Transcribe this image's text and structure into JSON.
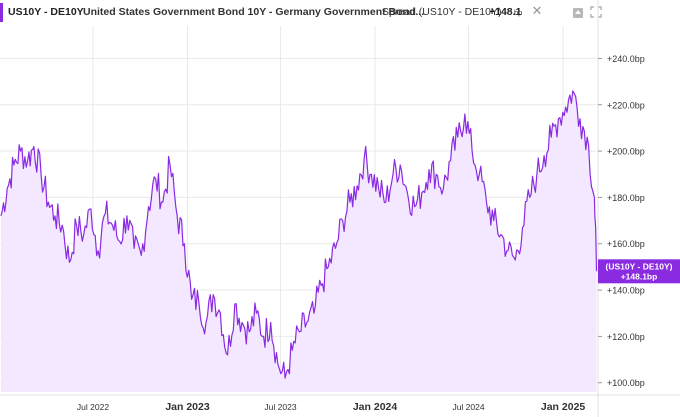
{
  "header": {
    "symbol": "US10Y - DE10Y",
    "description": "United States Government Bond 10Y - Germany Government Bond...",
    "spread_label": "Spread (US10Y - DE10Y)",
    "spread_value": "+148.1",
    "spread_unit": "bp",
    "close_glyph": "✕",
    "icons": [
      "upload-icon",
      "expand-icon"
    ]
  },
  "colors": {
    "accent": "#8a2be2",
    "line": "#8a2be2",
    "fill": "#f3e8ff",
    "grid": "#e9e9e9",
    "label_bg": "#8a2be2"
  },
  "price_label": {
    "line1": "(US10Y - DE10Y)",
    "line2": "+148.1bp"
  },
  "chart_data": {
    "type": "area",
    "title": "",
    "xlabel": "",
    "ylabel": "",
    "x_ticks": [
      "Jul 2022",
      "Jan 2023",
      "Jul 2023",
      "Jan 2024",
      "Jul 2024",
      "Jan 2025"
    ],
    "x_ticks_bold": [
      "Jan 2023",
      "Jan 2024",
      "Jan 2025"
    ],
    "y_ticks": [
      "+100.0bp",
      "+120.0bp",
      "+140.0bp",
      "+160.0bp",
      "+180.0bp",
      "+200.0bp",
      "+220.0bp",
      "+240.0bp"
    ],
    "y_tick_values": [
      100,
      120,
      140,
      160,
      180,
      200,
      220,
      240
    ],
    "ylim": [
      96,
      254
    ],
    "xlim": [
      "2022-01-01",
      "2025-03-10"
    ],
    "grid": true,
    "series": [
      {
        "name": "Spread (US10Y - DE10Y)",
        "points": [
          [
            "2022-01-03",
            172
          ],
          [
            "2022-01-15",
            184
          ],
          [
            "2022-01-28",
            194
          ],
          [
            "2022-02-10",
            200
          ],
          [
            "2022-02-24",
            196
          ],
          [
            "2022-03-08",
            202
          ],
          [
            "2022-03-22",
            190
          ],
          [
            "2022-04-05",
            178
          ],
          [
            "2022-04-18",
            172
          ],
          [
            "2022-05-02",
            168
          ],
          [
            "2022-05-16",
            152
          ],
          [
            "2022-05-30",
            168
          ],
          [
            "2022-06-13",
            164
          ],
          [
            "2022-06-27",
            175
          ],
          [
            "2022-07-11",
            157
          ],
          [
            "2022-07-25",
            173
          ],
          [
            "2022-08-08",
            168
          ],
          [
            "2022-08-22",
            161
          ],
          [
            "2022-09-05",
            172
          ],
          [
            "2022-09-19",
            158
          ],
          [
            "2022-10-03",
            155
          ],
          [
            "2022-10-17",
            176
          ],
          [
            "2022-10-31",
            188
          ],
          [
            "2022-11-14",
            178
          ],
          [
            "2022-11-28",
            194
          ],
          [
            "2022-12-12",
            172
          ],
          [
            "2022-12-26",
            160
          ],
          [
            "2023-01-09",
            136
          ],
          [
            "2023-01-23",
            135
          ],
          [
            "2023-02-06",
            126
          ],
          [
            "2023-02-20",
            138
          ],
          [
            "2023-03-06",
            130
          ],
          [
            "2023-03-20",
            112
          ],
          [
            "2023-04-03",
            134
          ],
          [
            "2023-04-17",
            126
          ],
          [
            "2023-05-01",
            122
          ],
          [
            "2023-05-15",
            130
          ],
          [
            "2023-05-29",
            120
          ],
          [
            "2023-06-12",
            126
          ],
          [
            "2023-06-26",
            108
          ],
          [
            "2023-07-10",
            102
          ],
          [
            "2023-07-24",
            114
          ],
          [
            "2023-08-07",
            122
          ],
          [
            "2023-08-21",
            126
          ],
          [
            "2023-09-04",
            130
          ],
          [
            "2023-09-18",
            142
          ],
          [
            "2023-10-02",
            150
          ],
          [
            "2023-10-16",
            158
          ],
          [
            "2023-10-30",
            170
          ],
          [
            "2023-11-13",
            178
          ],
          [
            "2023-11-27",
            185
          ],
          [
            "2023-12-11",
            197
          ],
          [
            "2023-12-25",
            190
          ],
          [
            "2024-01-08",
            184
          ],
          [
            "2024-01-22",
            178
          ],
          [
            "2024-02-05",
            190
          ],
          [
            "2024-02-19",
            194
          ],
          [
            "2024-03-04",
            182
          ],
          [
            "2024-03-18",
            176
          ],
          [
            "2024-04-01",
            182
          ],
          [
            "2024-04-15",
            192
          ],
          [
            "2024-04-29",
            190
          ],
          [
            "2024-05-13",
            184
          ],
          [
            "2024-05-27",
            196
          ],
          [
            "2024-06-10",
            206
          ],
          [
            "2024-06-24",
            216
          ],
          [
            "2024-07-08",
            200
          ],
          [
            "2024-07-22",
            190
          ],
          [
            "2024-08-05",
            178
          ],
          [
            "2024-08-19",
            170
          ],
          [
            "2024-09-02",
            164
          ],
          [
            "2024-09-16",
            157
          ],
          [
            "2024-09-30",
            153
          ],
          [
            "2024-10-14",
            167
          ],
          [
            "2024-10-28",
            180
          ],
          [
            "2024-11-11",
            190
          ],
          [
            "2024-11-25",
            198
          ],
          [
            "2024-12-09",
            206
          ],
          [
            "2024-12-23",
            214
          ],
          [
            "2025-01-06",
            219
          ],
          [
            "2025-01-20",
            226
          ],
          [
            "2025-02-03",
            214
          ],
          [
            "2025-02-17",
            206
          ],
          [
            "2025-03-03",
            180
          ],
          [
            "2025-03-07",
            148.1
          ]
        ]
      }
    ]
  }
}
